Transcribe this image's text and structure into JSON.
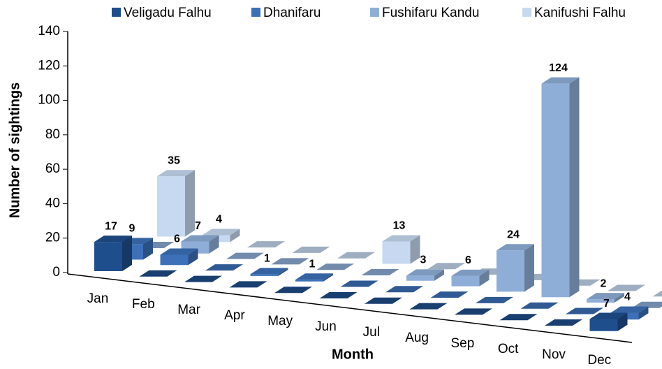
{
  "chart_data": {
    "type": "bar3d",
    "x_label": "Month",
    "y_label": "Number of sightings",
    "categories": [
      "Jan",
      "Feb",
      "Mar",
      "Apr",
      "May",
      "Jun",
      "Jul",
      "Aug",
      "Sep",
      "Oct",
      "Nov",
      "Dec"
    ],
    "series": [
      {
        "name": "Veligadu Falhu",
        "color": "#1f4e8c",
        "values": [
          17,
          0,
          0,
          0,
          0,
          0,
          0,
          0,
          0,
          0,
          0,
          7
        ]
      },
      {
        "name": "Dhanifaru",
        "color": "#3c70b8",
        "values": [
          9,
          6,
          0,
          1,
          1,
          0,
          0,
          0,
          0,
          0,
          0,
          4
        ]
      },
      {
        "name": "Fushifaru Kandu",
        "color": "#8eaed8",
        "values": [
          0,
          7,
          0,
          0,
          0,
          0,
          3,
          6,
          24,
          124,
          2,
          0
        ]
      },
      {
        "name": "Kanifushi Falhu",
        "color": "#c6d9f0",
        "values": [
          35,
          4,
          0,
          0,
          0,
          13,
          0,
          0,
          0,
          0,
          0,
          0
        ]
      }
    ],
    "ylim": [
      0,
      140
    ],
    "yticks": [
      0,
      20,
      40,
      60,
      80,
      100,
      120,
      140
    ],
    "legend": "top"
  }
}
